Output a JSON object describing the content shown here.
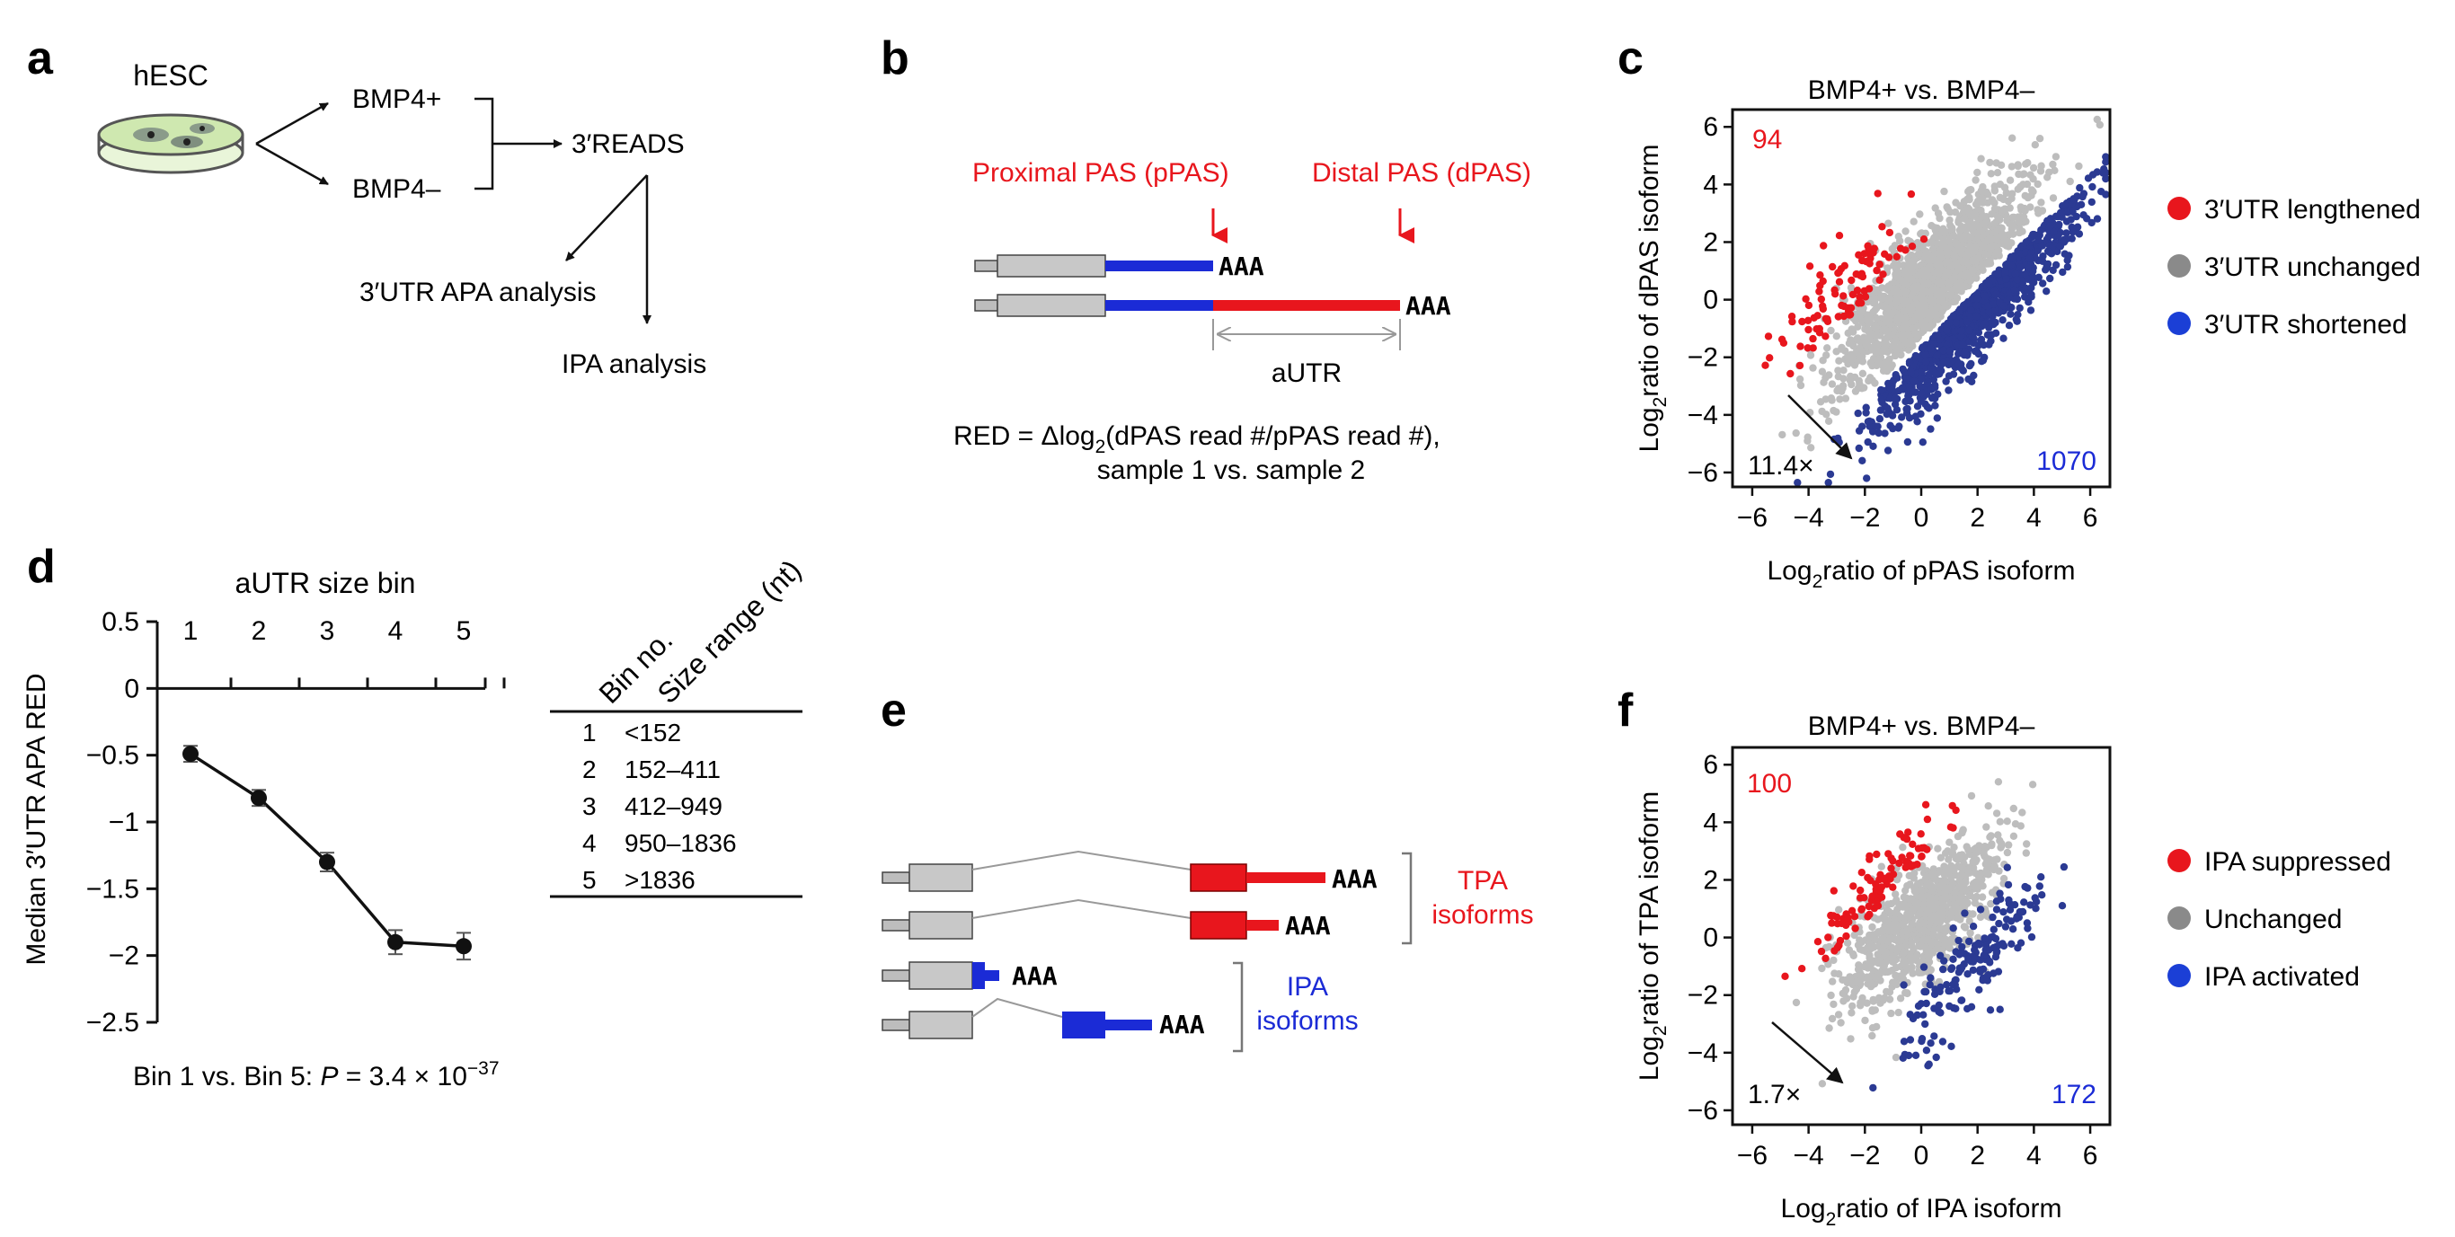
{
  "panel_labels": {
    "a": "a",
    "b": "b",
    "c": "c",
    "d": "d",
    "e": "e",
    "f": "f"
  },
  "panel_a": {
    "dish_label": "hESC",
    "cond1": "BMP4+",
    "cond2": "BMP4–",
    "method": "3′READS",
    "analysis1": "3′UTR APA analysis",
    "analysis2": "IPA analysis"
  },
  "panel_b": {
    "proximal": "Proximal PAS (pPAS)",
    "distal": "Distal PAS (dPAS)",
    "polyA": "AAA",
    "autr": "aUTR",
    "red_formula_prefix": "RED = Δlog",
    "red_formula_sub": "2",
    "red_formula_suffix": "(dPAS read #/pPAS read #),",
    "red_formula_line2": "sample 1 vs. sample 2"
  },
  "panel_c": {
    "chart_data": {
      "type": "scatter",
      "title": "BMP4+ vs. BMP4–",
      "xlabel": "Log2ratio of pPAS isoform",
      "ylabel": "Log2ratio of dPAS isoform",
      "xlim": [
        -6.7,
        6.7
      ],
      "ylim": [
        -6.5,
        6.6
      ],
      "xticks": [
        "−6",
        "−4",
        "−2",
        "0",
        "2",
        "4",
        "6"
      ],
      "yticks": [
        "6",
        "4",
        "2",
        "0",
        "−2",
        "−4",
        "−6"
      ],
      "count_lengthened": "94",
      "count_shortened": "1070",
      "fold_annotation": "11.4×",
      "legend": [
        {
          "label": "3′UTR lengthened",
          "color": "#e8161d"
        },
        {
          "label": "3′UTR unchanged",
          "color": "#8a8a8a"
        },
        {
          "label": "3′UTR shortened",
          "color": "#1b3fd6"
        }
      ],
      "series": [
        {
          "name": "3′UTR lengthened",
          "color": "#e8161d",
          "n": 94
        },
        {
          "name": "3′UTR unchanged",
          "color": "#bdbdbd",
          "n": 1500
        },
        {
          "name": "3′UTR shortened",
          "color": "#2b3a93",
          "n": 1070
        }
      ]
    }
  },
  "panel_d": {
    "chart_data": {
      "type": "line",
      "title": "aUTR size bin",
      "ylabel": "Median 3′UTR APA RED",
      "x": [
        1,
        2,
        3,
        4,
        5
      ],
      "xticks": [
        "1",
        "2",
        "3",
        "4",
        "5"
      ],
      "values": [
        -0.49,
        -0.82,
        -1.3,
        -1.9,
        -1.93
      ],
      "errors": [
        0.06,
        0.06,
        0.07,
        0.09,
        0.1
      ],
      "ylim": [
        -2.5,
        0.5
      ],
      "yticks": [
        "0.5",
        "0",
        "−0.5",
        "−1",
        "−1.5",
        "−2",
        "−2.5"
      ],
      "pvalue_prefix": "Bin 1 vs. Bin 5: ",
      "pvalue_p": "P",
      "pvalue_mid": " = 3.4 × 10",
      "pvalue_exp": "−37"
    },
    "table": {
      "headers": [
        "Bin no.",
        "Size range (nt)"
      ],
      "rows": [
        {
          "bin": "1",
          "range": "<152"
        },
        {
          "bin": "2",
          "range": "152–411"
        },
        {
          "bin": "3",
          "range": "412–949"
        },
        {
          "bin": "4",
          "range": "950–1836"
        },
        {
          "bin": "5",
          "range": ">1836"
        }
      ]
    }
  },
  "panel_e": {
    "polyA": "AAA",
    "tpa_line1": "TPA",
    "tpa_line2": "isoforms",
    "ipa_line1": "IPA",
    "ipa_line2": "isoforms"
  },
  "panel_f": {
    "chart_data": {
      "type": "scatter",
      "title": "BMP4+ vs. BMP4–",
      "xlabel": "Log2ratio of IPA isoform",
      "ylabel": "Log2ratio of TPA isoform",
      "xlim": [
        -6.7,
        6.7
      ],
      "ylim": [
        -6.5,
        6.6
      ],
      "xticks": [
        "−6",
        "−4",
        "−2",
        "0",
        "2",
        "4",
        "6"
      ],
      "yticks": [
        "6",
        "4",
        "2",
        "0",
        "−2",
        "−4",
        "−6"
      ],
      "count_suppressed": "100",
      "count_activated": "172",
      "fold_annotation": "1.7×",
      "legend": [
        {
          "label": "IPA suppressed",
          "color": "#e8161d"
        },
        {
          "label": "Unchanged",
          "color": "#8a8a8a"
        },
        {
          "label": "IPA activated",
          "color": "#1b3fd6"
        }
      ],
      "series": [
        {
          "name": "IPA suppressed",
          "color": "#e8161d",
          "n": 100
        },
        {
          "name": "Unchanged",
          "color": "#bdbdbd",
          "n": 900
        },
        {
          "name": "IPA activated",
          "color": "#2b3a93",
          "n": 172
        }
      ]
    }
  }
}
